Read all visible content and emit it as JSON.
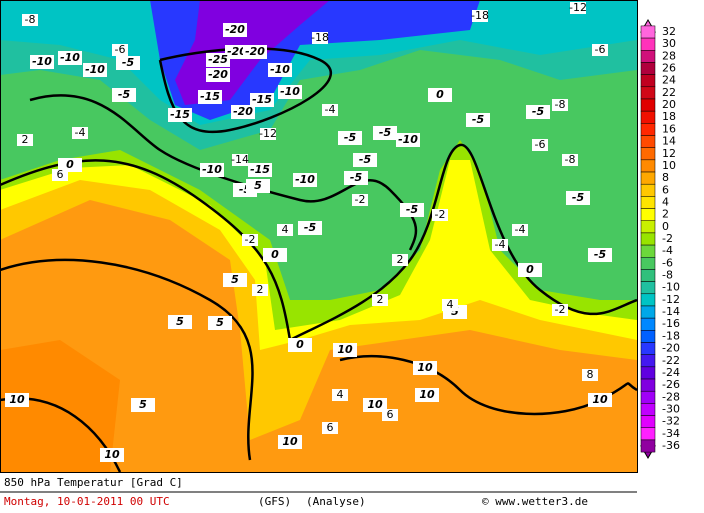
{
  "map": {
    "contour_labels": [
      "-10",
      "-10",
      "-5",
      "-20",
      "-20",
      "-25",
      "-20",
      "-15",
      "-15",
      "-10",
      "-20",
      "-15",
      "-10",
      "-15",
      "-20",
      "-10",
      "-5",
      "-10",
      "-10",
      "-5",
      "-5",
      "-5",
      "-5",
      "-5",
      "-10",
      "-5",
      "-5",
      "-5",
      "0",
      "0",
      "0",
      "0",
      "0",
      "5",
      "5",
      "5",
      "5",
      "5",
      "5",
      "10",
      "10",
      "10",
      "10",
      "10",
      "10",
      "10",
      "10",
      "-5",
      "-5",
      "-5"
    ],
    "minor_labels": [
      "-8",
      "-6",
      "-4",
      "-2",
      "-12",
      "-14",
      "-18",
      "-18",
      "-12",
      "-6",
      "-8",
      "-4",
      "-2",
      "2",
      "4",
      "6",
      "2",
      "4",
      "6",
      "2",
      "4",
      "6",
      "8",
      "-2",
      "-4",
      "-6",
      "-8",
      "-4",
      "-2",
      "2"
    ]
  },
  "legend": {
    "labels": [
      32,
      30,
      28,
      26,
      24,
      22,
      20,
      18,
      16,
      14,
      12,
      10,
      8,
      6,
      4,
      2,
      0,
      -2,
      -4,
      -6,
      -8,
      -10,
      -12,
      -14,
      -16,
      -18,
      -20,
      -22,
      -24,
      -26,
      -28,
      -30,
      -32,
      -34,
      -36
    ],
    "colors": [
      "#ff66dd",
      "#ff33bb",
      "#d0107a",
      "#b0003c",
      "#c00020",
      "#d00818",
      "#e00000",
      "#f01000",
      "#ff2800",
      "#ff4a00",
      "#ff6a00",
      "#ff8a00",
      "#ffa800",
      "#ffc800",
      "#ffe400",
      "#ffff00",
      "#c8f000",
      "#98e400",
      "#6cd83c",
      "#48c860",
      "#30c07c",
      "#20c0a0",
      "#00c4c4",
      "#00a8e8",
      "#0088ff",
      "#0060ff",
      "#2838ff",
      "#4418f0",
      "#6000e0",
      "#8000e0",
      "#a000f8",
      "#c000ff",
      "#e000ff",
      "#ff20ff",
      "#9000a0"
    ]
  },
  "footer": {
    "title": "850 hPa Temperatur [Grad C]",
    "date": "Montag, 10-01-2011  00 UTC",
    "model": "(GFS)",
    "run": "(Analyse)",
    "source": "© www.wetter3.de"
  }
}
